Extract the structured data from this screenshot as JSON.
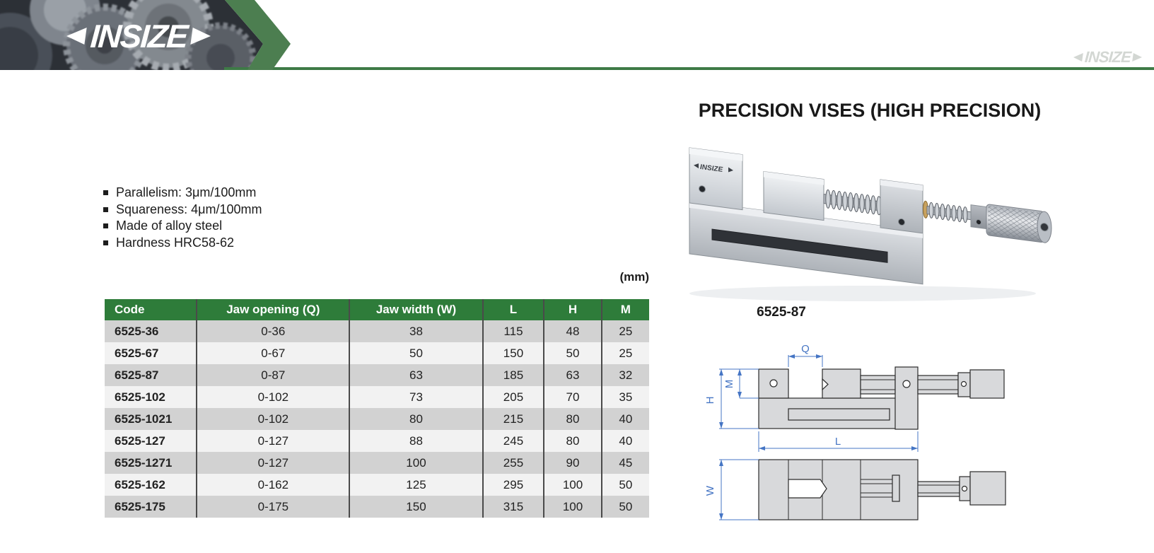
{
  "brand": {
    "logo_text": "INSIZE",
    "watermark_text": "INSIZE"
  },
  "page": {
    "title": "PRECISION VISES (HIGH PRECISION)",
    "units_label": "(mm)"
  },
  "features": {
    "items": [
      "Parallelism: 3μm/100mm",
      "Squareness: 4μm/100mm",
      "Made of alloy steel",
      "Hardness HRC58-62"
    ]
  },
  "product": {
    "image_caption": "6525-87"
  },
  "table": {
    "headers": [
      "Code",
      "Jaw opening (Q)",
      "Jaw width (W)",
      "L",
      "H",
      "M"
    ],
    "rows": [
      [
        "6525-36",
        "0-36",
        "38",
        "115",
        "48",
        "25"
      ],
      [
        "6525-67",
        "0-67",
        "50",
        "150",
        "50",
        "25"
      ],
      [
        "6525-87",
        "0-87",
        "63",
        "185",
        "63",
        "32"
      ],
      [
        "6525-102",
        "0-102",
        "73",
        "205",
        "70",
        "35"
      ],
      [
        "6525-1021",
        "0-102",
        "80",
        "215",
        "80",
        "40"
      ],
      [
        "6525-127",
        "0-127",
        "88",
        "245",
        "80",
        "40"
      ],
      [
        "6525-1271",
        "0-127",
        "100",
        "255",
        "90",
        "45"
      ],
      [
        "6525-162",
        "0-162",
        "125",
        "295",
        "100",
        "50"
      ],
      [
        "6525-175",
        "0-175",
        "150",
        "315",
        "100",
        "50"
      ]
    ]
  },
  "diagram": {
    "labels": {
      "q": "Q",
      "m": "M",
      "h": "H",
      "l": "L",
      "w": "W"
    }
  },
  "colors": {
    "brand_green": "#4C7E50",
    "rule_green": "#3E7A46",
    "table_header_green": "#2E7C3A",
    "row_alt_gray": "#D2D2D2",
    "row_light_gray": "#F2F2F2",
    "dimension_blue": "#4575C4"
  }
}
